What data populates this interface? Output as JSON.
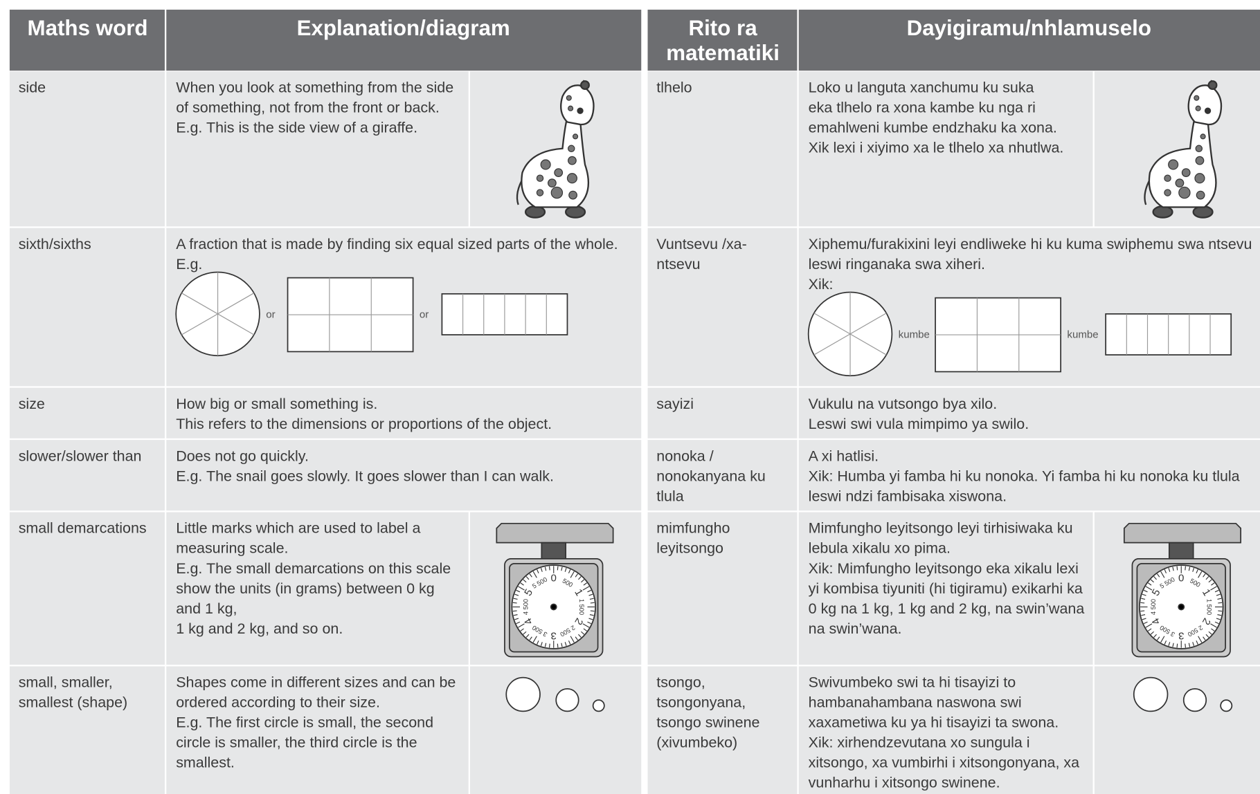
{
  "tables": [
    {
      "headers": [
        [
          "Maths word"
        ],
        [
          "Explanation/diagram"
        ]
      ],
      "connector": "or",
      "rows": [
        {
          "word": [
            "side"
          ],
          "explanation": [
            "When you look at something from the side",
            "of something, not from the front or back.",
            "E.g. This is the side view of a giraffe."
          ]
        },
        {
          "word": [
            "sixth/sixths"
          ],
          "explanation": [
            "A fraction that is made by finding six equal sized parts of the whole.",
            "E.g."
          ]
        },
        {
          "word": [
            "size"
          ],
          "explanation": [
            "How big or small something is.",
            "This refers to the dimensions or proportions of the object."
          ]
        },
        {
          "word": [
            "slower/slower than"
          ],
          "explanation": [
            "Does not go quickly.",
            "E.g. The snail goes slowly. It goes slower than I can walk."
          ]
        },
        {
          "word": [
            "small demarcations"
          ],
          "explanation": [
            "Little marks which are used to label a",
            "measuring scale.",
            "E.g. The small demarcations on this scale",
            "show the units (in grams) between 0 kg",
            "and 1 kg,",
            "1 kg and 2 kg, and so on."
          ]
        },
        {
          "word": [
            "small, smaller,",
            "smallest (shape)"
          ],
          "explanation": [
            "Shapes come in different sizes and can be",
            "ordered according to their size.",
            "E.g. The first circle is small, the second",
            "circle is smaller, the third circle is the",
            "smallest."
          ]
        }
      ]
    },
    {
      "headers": [
        [
          "Rito ra",
          "matematiki"
        ],
        [
          "Dayigiramu/nhlamuselo"
        ]
      ],
      "connector": "kumbe",
      "rows": [
        {
          "word": [
            "tlhelo"
          ],
          "explanation": [
            "Loko u languta xanchumu ku suka",
            "eka tlhelo ra xona kambe ku nga ri",
            "emahlweni kumbe endzhaku ka xona.",
            "Xik lexi i xiyimo xa le tlhelo xa nhutlwa."
          ]
        },
        {
          "word": [
            "Vuntsevu /xa-",
            "ntsevu"
          ],
          "explanation": [
            "Xiphemu/furakixini leyi endliweke hi ku kuma swiphemu swa ntsevu",
            "leswi ringanaka swa xiheri.",
            "Xik:"
          ]
        },
        {
          "word": [
            "sayizi"
          ],
          "explanation": [
            "Vukulu na vutsongo bya xilo.",
            "Leswi swi vula mimpimo ya swilo."
          ]
        },
        {
          "word": [
            "nonoka /",
            "nonokanyana ku",
            "tlula"
          ],
          "explanation": [
            "A xi hatlisi.",
            "Xik: Humba yi famba hi ku nonoka. Yi famba hi ku nonoka ku tlula",
            "leswi ndzi fambisaka xiswona."
          ]
        },
        {
          "word": [
            "mimfungho",
            "leyitsongo"
          ],
          "explanation": [
            "Mimfungho leyitsongo leyi tirhisiwaka ku",
            "lebula xikalu xo pima.",
            "Xik: Mimfungho leyitsongo eka xikalu lexi",
            "yi kombisa tiyuniti (hi tigiramu) exikarhi ka",
            "0 kg na 1 kg, 1 kg and 2 kg, na swin’wana",
            "na swin’wana."
          ]
        },
        {
          "word": [
            "tsongo,",
            "tsongonyana,",
            "tsongo swinene",
            "(xivumbeko)"
          ],
          "explanation": [
            "Swivumbeko swi ta hi tisayizi to",
            "hambanahambana naswona swi",
            "xaxametiwa ku ya hi tisayizi ta swona.",
            "Xik: xirhendzevutana xo sungula i",
            "xitsongo, xa vumbirhi i xitsongonyana, xa",
            "vunharhu i xitsongo swinene."
          ]
        }
      ]
    }
  ],
  "scale_dial_labels": [
    "0",
    "500",
    "1",
    "1 500",
    "2",
    "2 500",
    "3",
    "3 500",
    "4",
    "4 500",
    "5",
    "5 500"
  ]
}
